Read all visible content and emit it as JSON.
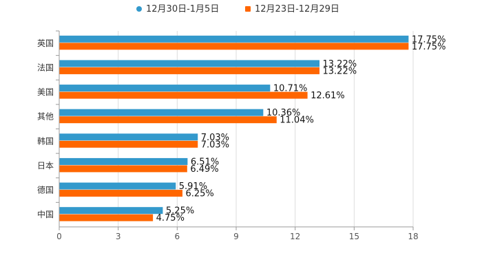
{
  "chart_data": {
    "type": "bar",
    "orientation": "horizontal",
    "title": "",
    "xlabel": "",
    "ylabel": "",
    "categories": [
      "英国",
      "法国",
      "美国",
      "其他",
      "韩国",
      "日本",
      "德国",
      "中国"
    ],
    "series": [
      {
        "name": "12月30日-1月5日",
        "color": "#3399CC",
        "values": [
          17.75,
          13.22,
          10.71,
          10.36,
          7.03,
          6.51,
          5.91,
          5.25
        ],
        "labels": [
          "17.75%",
          "13.22%",
          "10.71%",
          "10.36%",
          "7.03%",
          "6.51%",
          "5.91%",
          "5.25%"
        ]
      },
      {
        "name": "12月23日-12月29日",
        "color": "#FF6600",
        "values": [
          17.75,
          13.22,
          12.61,
          11.04,
          7.03,
          6.49,
          6.25,
          4.75
        ],
        "labels": [
          "17.75%",
          "13.22%",
          "12.61%",
          "11.04%",
          "7.03%",
          "6.49%",
          "6.25%",
          "4.75%"
        ]
      }
    ],
    "xlim": [
      0,
      18
    ],
    "ticks": [
      "0",
      "3",
      "6",
      "9",
      "12",
      "15",
      "18"
    ],
    "grid": true,
    "legend_position": "top-center",
    "grid_color": "#dddddd",
    "axis_color": "#999999"
  }
}
